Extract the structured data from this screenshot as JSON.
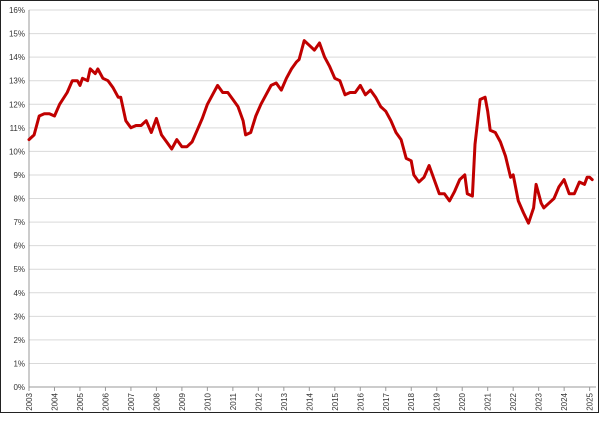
{
  "chart_data": {
    "type": "line",
    "x": [
      2003.0,
      2003.2,
      2003.4,
      2003.6,
      2003.8,
      2004.0,
      2004.2,
      2004.5,
      2004.7,
      2004.9,
      2005.0,
      2005.1,
      2005.3,
      2005.4,
      2005.6,
      2005.7,
      2005.9,
      2006.1,
      2006.3,
      2006.5,
      2006.6,
      2006.8,
      2007.0,
      2007.2,
      2007.4,
      2007.6,
      2007.8,
      2008.0,
      2008.2,
      2008.4,
      2008.6,
      2008.8,
      2009.0,
      2009.2,
      2009.4,
      2009.6,
      2009.8,
      2010.0,
      2010.2,
      2010.4,
      2010.6,
      2010.8,
      2011.0,
      2011.2,
      2011.4,
      2011.5,
      2011.7,
      2011.9,
      2012.1,
      2012.3,
      2012.5,
      2012.7,
      2012.9,
      2013.1,
      2013.3,
      2013.5,
      2013.6,
      2013.8,
      2014.0,
      2014.2,
      2014.4,
      2014.6,
      2014.8,
      2015.0,
      2015.2,
      2015.4,
      2015.6,
      2015.8,
      2016.0,
      2016.2,
      2016.4,
      2016.6,
      2016.8,
      2017.0,
      2017.2,
      2017.4,
      2017.6,
      2017.8,
      2018.0,
      2018.1,
      2018.3,
      2018.5,
      2018.7,
      2018.9,
      2019.1,
      2019.3,
      2019.5,
      2019.7,
      2019.9,
      2020.1,
      2020.2,
      2020.4,
      2020.5,
      2020.7,
      2020.9,
      2021.0,
      2021.1,
      2021.3,
      2021.5,
      2021.7,
      2021.9,
      2022.0,
      2022.2,
      2022.4,
      2022.6,
      2022.8,
      2022.9,
      2023.1,
      2023.2,
      2023.4,
      2023.6,
      2023.8,
      2024.0,
      2024.2,
      2024.4,
      2024.6,
      2024.8,
      2024.9,
      2025.0,
      2025.1
    ],
    "values": [
      10.5,
      10.7,
      11.5,
      11.6,
      11.6,
      11.5,
      12.0,
      12.5,
      13.0,
      13.0,
      12.8,
      13.1,
      13.0,
      13.5,
      13.3,
      13.5,
      13.1,
      13.0,
      12.7,
      12.3,
      12.3,
      11.3,
      11.0,
      11.1,
      11.1,
      11.3,
      10.8,
      11.4,
      10.7,
      10.4,
      10.1,
      10.5,
      10.2,
      10.2,
      10.4,
      10.9,
      11.4,
      12.0,
      12.4,
      12.8,
      12.5,
      12.5,
      12.2,
      11.9,
      11.3,
      10.7,
      10.8,
      11.5,
      12.0,
      12.4,
      12.8,
      12.9,
      12.6,
      13.1,
      13.5,
      13.8,
      13.9,
      14.7,
      14.5,
      14.3,
      14.6,
      14.0,
      13.6,
      13.1,
      13.0,
      12.4,
      12.5,
      12.5,
      12.8,
      12.4,
      12.6,
      12.3,
      11.9,
      11.7,
      11.3,
      10.8,
      10.5,
      9.7,
      9.6,
      9.0,
      8.7,
      8.9,
      9.4,
      8.8,
      8.2,
      8.2,
      7.9,
      8.3,
      8.8,
      9.0,
      8.2,
      8.1,
      10.3,
      12.2,
      12.3,
      11.7,
      10.9,
      10.8,
      10.4,
      9.8,
      8.9,
      9.0,
      7.9,
      7.4,
      6.95,
      7.6,
      8.6,
      7.8,
      7.6,
      7.8,
      8.0,
      8.5,
      8.8,
      8.2,
      8.2,
      8.7,
      8.6,
      8.9,
      8.9,
      8.8
    ],
    "color": "#c00000",
    "xlim": [
      2003,
      2025.25
    ],
    "xticks": [
      2003,
      2004,
      2005,
      2006,
      2007,
      2008,
      2009,
      2010,
      2011,
      2012,
      2013,
      2014,
      2015,
      2016,
      2017,
      2018,
      2019,
      2020,
      2021,
      2022,
      2023,
      2024,
      2025
    ],
    "ylim": [
      0,
      16
    ],
    "yticks": [
      {
        "value": 0,
        "label": "0%"
      },
      {
        "value": 1,
        "label": "1%"
      },
      {
        "value": 2,
        "label": "2%"
      },
      {
        "value": 3,
        "label": "3%"
      },
      {
        "value": 4,
        "label": "4%"
      },
      {
        "value": 5,
        "label": "5%"
      },
      {
        "value": 6,
        "label": "6%"
      },
      {
        "value": 7,
        "label": "7%"
      },
      {
        "value": 8,
        "label": "8%"
      },
      {
        "value": 9,
        "label": "9%"
      },
      {
        "value": 10,
        "label": "10%"
      },
      {
        "value": 11,
        "label": "11%"
      },
      {
        "value": 12,
        "label": "12%"
      },
      {
        "value": 13,
        "label": "13%"
      },
      {
        "value": 14,
        "label": "14%"
      },
      {
        "value": 15,
        "label": "15%"
      },
      {
        "value": 16,
        "label": "16%"
      }
    ],
    "grid": true
  }
}
